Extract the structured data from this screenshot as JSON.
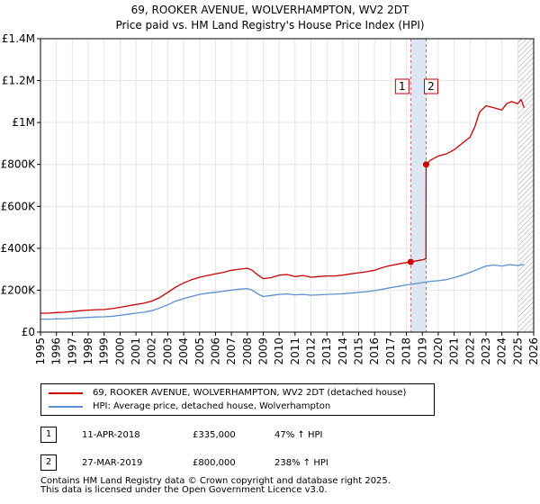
{
  "title": {
    "line1": "69, ROOKER AVENUE, WOLVERHAMPTON, WV2 2DT",
    "line2": "Price paid vs. HM Land Registry's House Price Index (HPI)"
  },
  "colors": {
    "property": "#cc0000",
    "hpi": "#5b8fd0",
    "grid": "#e6e6e6",
    "plot_bg": "#ffffff",
    "sale_band": "#dde6f4",
    "marker_line": "#cc0000",
    "forecast_hatch": "#999999"
  },
  "chart_data": {
    "type": "line",
    "ylim": [
      0,
      1400000
    ],
    "xlim": [
      1995,
      2026
    ],
    "y_ticks": [
      0,
      200000,
      400000,
      600000,
      800000,
      1000000,
      1200000,
      1400000
    ],
    "y_tick_labels": [
      "£0",
      "£200K",
      "£400K",
      "£600K",
      "£800K",
      "£1M",
      "£1.2M",
      "£1.4M"
    ],
    "x_ticks": [
      1995,
      1996,
      1997,
      1998,
      1999,
      2000,
      2001,
      2002,
      2003,
      2004,
      2005,
      2006,
      2007,
      2008,
      2009,
      2010,
      2011,
      2012,
      2013,
      2014,
      2015,
      2016,
      2017,
      2018,
      2019,
      2020,
      2021,
      2022,
      2023,
      2024,
      2025,
      2026
    ],
    "x_tick_labels": [
      "1995",
      "1996",
      "1997",
      "1998",
      "1999",
      "2000",
      "2001",
      "2002",
      "2003",
      "2004",
      "2005",
      "2006",
      "2007",
      "2008",
      "2009",
      "2010",
      "2011",
      "2012",
      "2013",
      "2014",
      "2015",
      "2016",
      "2017",
      "2018",
      "2019",
      "2020",
      "2021",
      "2022",
      "2023",
      "2024",
      "2025",
      "2026"
    ],
    "series": [
      {
        "name": "69, ROOKER AVENUE, WOLVERHAMPTON, WV2 2DT (detached house)",
        "color": "#cc0000",
        "x": [
          1995.0,
          1995.5,
          1996.0,
          1996.5,
          1997.0,
          1997.5,
          1998.0,
          1998.5,
          1999.0,
          1999.5,
          2000.0,
          2000.5,
          2001.0,
          2001.5,
          2002.0,
          2002.5,
          2003.0,
          2003.5,
          2004.0,
          2004.5,
          2005.0,
          2005.5,
          2006.0,
          2006.5,
          2007.0,
          2007.5,
          2008.0,
          2008.3,
          2008.7,
          2009.0,
          2009.5,
          2010.0,
          2010.5,
          2011.0,
          2011.5,
          2012.0,
          2012.5,
          2013.0,
          2013.5,
          2014.0,
          2014.5,
          2015.0,
          2015.5,
          2016.0,
          2016.5,
          2017.0,
          2017.5,
          2018.0,
          2018.27,
          2018.5,
          2019.0,
          2019.23,
          2019.24,
          2019.5,
          2020.0,
          2020.5,
          2021.0,
          2021.5,
          2022.0,
          2022.3,
          2022.6,
          2023.0,
          2023.5,
          2024.0,
          2024.3,
          2024.6,
          2025.0,
          2025.2,
          2025.4
        ],
        "values": [
          90000,
          90000,
          93000,
          95000,
          98000,
          102000,
          105000,
          107000,
          108000,
          112000,
          118000,
          125000,
          132000,
          138000,
          148000,
          165000,
          190000,
          215000,
          235000,
          250000,
          262000,
          270000,
          278000,
          285000,
          295000,
          300000,
          305000,
          295000,
          270000,
          255000,
          260000,
          272000,
          275000,
          265000,
          270000,
          262000,
          265000,
          268000,
          268000,
          272000,
          278000,
          283000,
          288000,
          295000,
          308000,
          318000,
          325000,
          332000,
          335000,
          338000,
          345000,
          350000,
          800000,
          820000,
          840000,
          850000,
          870000,
          900000,
          930000,
          980000,
          1050000,
          1080000,
          1070000,
          1060000,
          1090000,
          1100000,
          1090000,
          1110000,
          1070000
        ]
      },
      {
        "name": "HPI: Average price, detached house, Wolverhampton",
        "color": "#5b8fd0",
        "x": [
          1995.0,
          1995.5,
          1996.0,
          1996.5,
          1997.0,
          1997.5,
          1998.0,
          1998.5,
          1999.0,
          1999.5,
          2000.0,
          2000.5,
          2001.0,
          2001.5,
          2002.0,
          2002.5,
          2003.0,
          2003.5,
          2004.0,
          2004.5,
          2005.0,
          2005.5,
          2006.0,
          2006.5,
          2007.0,
          2007.5,
          2008.0,
          2008.3,
          2008.7,
          2009.0,
          2009.5,
          2010.0,
          2010.5,
          2011.0,
          2011.5,
          2012.0,
          2012.5,
          2013.0,
          2013.5,
          2014.0,
          2014.5,
          2015.0,
          2015.5,
          2016.0,
          2016.5,
          2017.0,
          2017.5,
          2018.0,
          2018.5,
          2019.0,
          2019.5,
          2020.0,
          2020.5,
          2021.0,
          2021.5,
          2022.0,
          2022.5,
          2023.0,
          2023.5,
          2024.0,
          2024.5,
          2025.0,
          2025.4
        ],
        "values": [
          62000,
          62000,
          63000,
          64000,
          66000,
          68000,
          70000,
          72000,
          73000,
          75000,
          80000,
          85000,
          90000,
          95000,
          102000,
          115000,
          130000,
          148000,
          160000,
          170000,
          180000,
          186000,
          190000,
          195000,
          200000,
          205000,
          208000,
          200000,
          180000,
          170000,
          175000,
          180000,
          182000,
          178000,
          180000,
          176000,
          178000,
          180000,
          181000,
          183000,
          186000,
          190000,
          193000,
          198000,
          205000,
          212000,
          218000,
          225000,
          230000,
          236000,
          242000,
          245000,
          250000,
          260000,
          272000,
          285000,
          300000,
          315000,
          320000,
          315000,
          322000,
          318000,
          322000
        ]
      }
    ],
    "annotations": [
      {
        "label": "1",
        "x": 2018.27,
        "value": 335000
      },
      {
        "label": "2",
        "x": 2019.24,
        "value": 800000
      }
    ],
    "forecast_start": 2025.0
  },
  "legend": {
    "property_label": "69, ROOKER AVENUE, WOLVERHAMPTON, WV2 2DT (detached house)",
    "hpi_label": "HPI: Average price, detached house, Wolverhampton"
  },
  "sales": [
    {
      "num": "1",
      "date": "11-APR-2018",
      "price": "£335,000",
      "hpi": "47% ↑ HPI"
    },
    {
      "num": "2",
      "date": "27-MAR-2019",
      "price": "£800,000",
      "hpi": "238% ↑ HPI"
    }
  ],
  "footer": {
    "line1": "Contains HM Land Registry data © Crown copyright and database right 2025.",
    "line2": "This data is licensed under the Open Government Licence v3.0."
  }
}
